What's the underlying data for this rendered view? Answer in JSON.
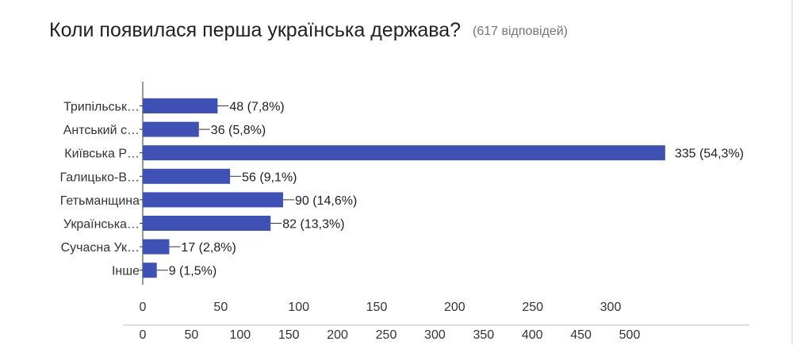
{
  "header": {
    "question": "Коли появилася перша українська держава?",
    "responses": "(617 відповідей)"
  },
  "colors": {
    "bar": "#3f51b5",
    "axis": "#333333",
    "text": "#212121"
  },
  "chart_data": {
    "type": "bar",
    "orientation": "horizontal",
    "categories": [
      "Трипільськ…",
      "Антський с…",
      "Київська Р…",
      "Галицько-В…",
      "Гетьманщина",
      "Українська…",
      "Сучасна Ук…",
      "Інше"
    ],
    "values": [
      48,
      36,
      335,
      56,
      90,
      82,
      17,
      9
    ],
    "data_labels": [
      "48 (7,8%)",
      "36 (5,8%)",
      "335 (54,3%)",
      "56 (9,1%)",
      "90 (14,6%)",
      "82 (13,3%)",
      "17 (2,8%)",
      "9 (1,5%)"
    ],
    "xlim": [
      0,
      330
    ],
    "xticks": [
      "0",
      "50",
      "100",
      "150",
      "200",
      "250",
      "300"
    ],
    "xticks_overlap": [
      "0",
      "50",
      "100",
      "150",
      "200",
      "250",
      "300",
      "350",
      "400",
      "450",
      "500"
    ],
    "grid": false,
    "legend": "none"
  }
}
